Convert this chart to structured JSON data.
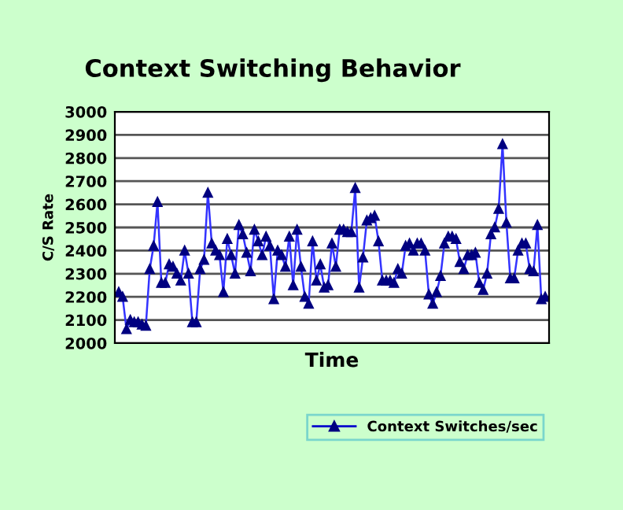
{
  "chart_data": {
    "type": "line",
    "title": "Context Switching Behavior",
    "xlabel": "Time",
    "ylabel": "C/S Rate",
    "categories": [
      null,
      null,
      null,
      null,
      null,
      null,
      null,
      null,
      null,
      null,
      null,
      null,
      null,
      null,
      null,
      null,
      null,
      null,
      null,
      null,
      null,
      null,
      null,
      null,
      null,
      null,
      null,
      null,
      null,
      null,
      null,
      null,
      null,
      null,
      null,
      null,
      null,
      null,
      null,
      null,
      null,
      null,
      null,
      null,
      null,
      null,
      null,
      null,
      null,
      null,
      null,
      null,
      null,
      null,
      null,
      null,
      null,
      null,
      null,
      null,
      null,
      null,
      null,
      null,
      null,
      null,
      null,
      null,
      null,
      null,
      null,
      null,
      null,
      null,
      null,
      null,
      null,
      null,
      null,
      null,
      null,
      null,
      null,
      null,
      null,
      null,
      null,
      null,
      null,
      null,
      null,
      null,
      null,
      null,
      null,
      null,
      null,
      null,
      null,
      null,
      null,
      null,
      null,
      null,
      null,
      null,
      null,
      null,
      null,
      null,
      null
    ],
    "series": [
      {
        "name": "Context Switches/sec",
        "color": "#3333ff",
        "values": [
          2220,
          2200,
          2060,
          2100,
          2090,
          2090,
          2080,
          2075,
          2320,
          2420,
          2610,
          2260,
          2260,
          2340,
          2330,
          2300,
          2270,
          2400,
          2300,
          2090,
          2090,
          2320,
          2360,
          2650,
          2430,
          2400,
          2380,
          2220,
          2450,
          2380,
          2300,
          2510,
          2470,
          2390,
          2310,
          2490,
          2440,
          2380,
          2460,
          2420,
          2190,
          2400,
          2380,
          2330,
          2460,
          2250,
          2490,
          2330,
          2200,
          2170,
          2440,
          2270,
          2340,
          2240,
          2250,
          2430,
          2330,
          2490,
          2490,
          2480,
          2480,
          2670,
          2240,
          2370,
          2530,
          2540,
          2550,
          2440,
          2270,
          2270,
          2270,
          2260,
          2320,
          2300,
          2420,
          2430,
          2400,
          2430,
          2430,
          2400,
          2210,
          2170,
          2220,
          2290,
          2430,
          2460,
          2460,
          2450,
          2350,
          2320,
          2380,
          2380,
          2390,
          2260,
          2230,
          2300,
          2470,
          2500,
          2580,
          2860,
          2520,
          2280,
          2280,
          2400,
          2430,
          2430,
          2320,
          2310,
          2510,
          2190,
          2200
        ]
      }
    ],
    "ylim": [
      2000,
      3000
    ],
    "yticks": [
      2000,
      2100,
      2200,
      2300,
      2400,
      2500,
      2600,
      2700,
      2800,
      2900,
      3000
    ],
    "grid": "y",
    "legend": "bottom right",
    "marker": "triangle",
    "line_style": "solid",
    "tick_labels": "y"
  }
}
